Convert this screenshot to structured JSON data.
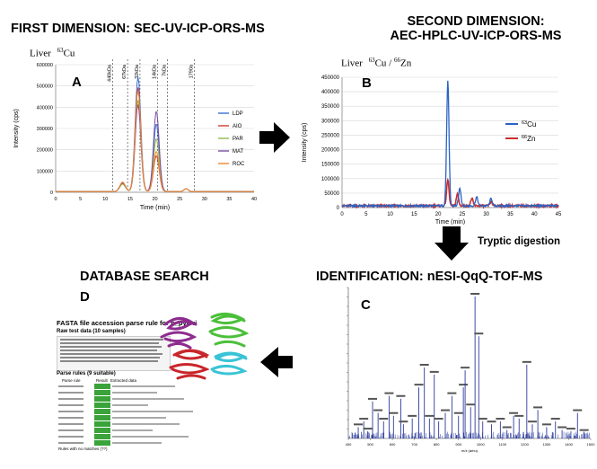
{
  "step1": {
    "title": "FIRST DIMENSION: SEC-UV-ICP-ORS-MS",
    "sample": "Liver",
    "isotope_sup": "63",
    "isotope_el": "Cu",
    "panel": "A"
  },
  "step2": {
    "title_line1": "SECOND DIMENSION:",
    "title_line2": "AEC-HPLC-UV-ICP-ORS-MS",
    "sample": "Liver",
    "iso_a_sup": "63",
    "iso_a_el": "Cu",
    "separator": "/",
    "iso_b_sup": "66",
    "iso_b_el": "Zn",
    "panel": "B"
  },
  "step3": {
    "title": "IDENTIFICATION: nESI-QqQ-TOF-MS",
    "panel": "C"
  },
  "step4": {
    "title": "DATABASE SEARCH",
    "panel": "D",
    "fasta_title": "FASTA file accession parse rule for h_pylori",
    "raw_heading": "Raw test data (10 samples)",
    "parse_heading": "Parse rules (9 suitable)",
    "col_parse_rule": "Parse rule",
    "col_result": "Result",
    "col_extracted": "Extracted data",
    "footer_note": "Rules with no matches (??)"
  },
  "arrows": {
    "tryptic_label": "Tryptic digestion"
  },
  "chart_data": [
    {
      "type": "line",
      "panel": "A",
      "xlabel": "Time (min)",
      "ylabel": "Intensity (cps)",
      "xlim": [
        0,
        40
      ],
      "ylim": [
        0,
        600000
      ],
      "x_ticks": [
        "0",
        "5",
        "10",
        "15",
        "20",
        "25",
        "30",
        "35",
        "40"
      ],
      "y_ticks": [
        "0",
        "100000",
        "200000",
        "300000",
        "400000",
        "500000",
        "600000"
      ],
      "markers": [
        {
          "label": "440kDa",
          "x": 11.5
        },
        {
          "label": "67kDa",
          "x": 14.5
        },
        {
          "label": "32kDa",
          "x": 17.0
        },
        {
          "label": "14kDa",
          "x": 20.5
        },
        {
          "label": "7kDa",
          "x": 22.5
        },
        {
          "label": "1790a",
          "x": 28.0
        }
      ],
      "legend_position": "right",
      "series": [
        {
          "name": "LDP",
          "color": "#3b6fd4",
          "peaks": [
            [
              13.5,
              40000
            ],
            [
              16.6,
              540000
            ],
            [
              20.3,
              320000
            ]
          ]
        },
        {
          "name": "AIO",
          "color": "#d63b36",
          "peaks": [
            [
              13.5,
              38000
            ],
            [
              16.6,
              490000
            ],
            [
              20.3,
              170000
            ]
          ]
        },
        {
          "name": "PAR",
          "color": "#94b84d",
          "peaks": [
            [
              13.5,
              35000
            ],
            [
              16.6,
              430000
            ],
            [
              20.3,
              250000
            ]
          ]
        },
        {
          "name": "MAT",
          "color": "#7a4fa0",
          "peaks": [
            [
              13.5,
              42000
            ],
            [
              16.6,
              410000
            ],
            [
              20.3,
              380000
            ]
          ]
        },
        {
          "name": "ROC",
          "color": "#f08a2b",
          "peaks": [
            [
              13.5,
              45000
            ],
            [
              16.6,
              475000
            ],
            [
              20.3,
              190000
            ]
          ]
        }
      ]
    },
    {
      "type": "line",
      "panel": "B",
      "xlabel": "Time (min)",
      "ylabel": "Intensity (cps)",
      "xlim": [
        0,
        45
      ],
      "ylim": [
        0,
        450000
      ],
      "x_ticks": [
        "0",
        "5",
        "10",
        "15",
        "20",
        "25",
        "30",
        "35",
        "40",
        "45"
      ],
      "y_ticks": [
        "0",
        "50000",
        "100000",
        "150000",
        "200000",
        "250000",
        "300000",
        "350000",
        "400000",
        "450000"
      ],
      "legend_position": "right",
      "series": [
        {
          "name": "63Cu",
          "color": "#2a63c4",
          "peaks": [
            [
              22.0,
              430000
            ],
            [
              24.5,
              60000
            ],
            [
              28.0,
              30000
            ],
            [
              31.0,
              25000
            ]
          ]
        },
        {
          "name": "66Zn",
          "color": "#cc2f2f",
          "peaks": [
            [
              22.0,
              90000
            ],
            [
              24.0,
              40000
            ],
            [
              27.0,
              25000
            ],
            [
              31.0,
              15000
            ]
          ]
        }
      ]
    },
    {
      "type": "bar",
      "panel": "C",
      "xlabel": "m/z (amu)",
      "xlim": [
        400,
        1500
      ],
      "x_ticks": [
        "400",
        "500",
        "600",
        "700",
        "800",
        "900",
        "1000",
        "1100",
        "1200",
        "1300",
        "1400",
        "1500"
      ],
      "peaks": [
        {
          "x": 445,
          "h": 0.08
        },
        {
          "x": 470,
          "h": 0.12
        },
        {
          "x": 488,
          "h": 0.05
        },
        {
          "x": 510,
          "h": 0.26
        },
        {
          "x": 535,
          "h": 0.18
        },
        {
          "x": 560,
          "h": 0.12
        },
        {
          "x": 585,
          "h": 0.3
        },
        {
          "x": 605,
          "h": 0.16
        },
        {
          "x": 638,
          "h": 0.28
        },
        {
          "x": 650,
          "h": 0.1
        },
        {
          "x": 690,
          "h": 0.14
        },
        {
          "x": 720,
          "h": 0.36
        },
        {
          "x": 745,
          "h": 0.5
        },
        {
          "x": 768,
          "h": 0.14
        },
        {
          "x": 790,
          "h": 0.45
        },
        {
          "x": 810,
          "h": 0.12
        },
        {
          "x": 840,
          "h": 0.18
        },
        {
          "x": 870,
          "h": 0.3
        },
        {
          "x": 900,
          "h": 0.16
        },
        {
          "x": 922,
          "h": 0.36
        },
        {
          "x": 930,
          "h": 0.48
        },
        {
          "x": 955,
          "h": 0.22
        },
        {
          "x": 975,
          "h": 1.0
        },
        {
          "x": 992,
          "h": 0.72
        },
        {
          "x": 1010,
          "h": 0.12
        },
        {
          "x": 1050,
          "h": 0.1
        },
        {
          "x": 1090,
          "h": 0.12
        },
        {
          "x": 1120,
          "h": 0.06
        },
        {
          "x": 1150,
          "h": 0.16
        },
        {
          "x": 1175,
          "h": 0.14
        },
        {
          "x": 1210,
          "h": 0.52
        },
        {
          "x": 1235,
          "h": 0.1
        },
        {
          "x": 1260,
          "h": 0.2
        },
        {
          "x": 1300,
          "h": 0.08
        },
        {
          "x": 1340,
          "h": 0.12
        },
        {
          "x": 1370,
          "h": 0.06
        },
        {
          "x": 1410,
          "h": 0.05
        },
        {
          "x": 1440,
          "h": 0.18
        },
        {
          "x": 1470,
          "h": 0.04
        }
      ]
    }
  ]
}
